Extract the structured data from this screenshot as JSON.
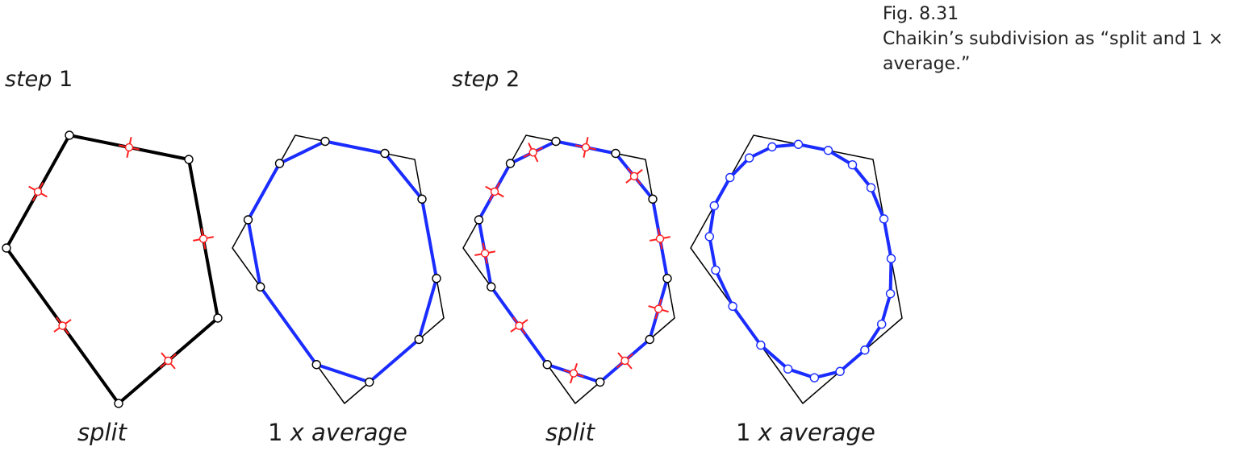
{
  "figure": {
    "number": "Fig. 8.31",
    "caption": "Chaikin’s subdivision as “split and 1 × average.”"
  },
  "steps": [
    {
      "word": "step",
      "number": "1"
    },
    {
      "word": "step",
      "number": "2"
    }
  ],
  "panel_labels": [
    {
      "text": "split"
    },
    {
      "prefix": "1 ",
      "x_symbol": "x",
      "rest": " average"
    },
    {
      "text": "split"
    },
    {
      "prefix": "1 ",
      "x_symbol": "x",
      "rest": " average"
    }
  ],
  "colors": {
    "original_polygon": "#000000",
    "refined_polygon": "#1a2cff",
    "split_marker": "#ff2020",
    "vertex_fill": "#ffffff"
  }
}
